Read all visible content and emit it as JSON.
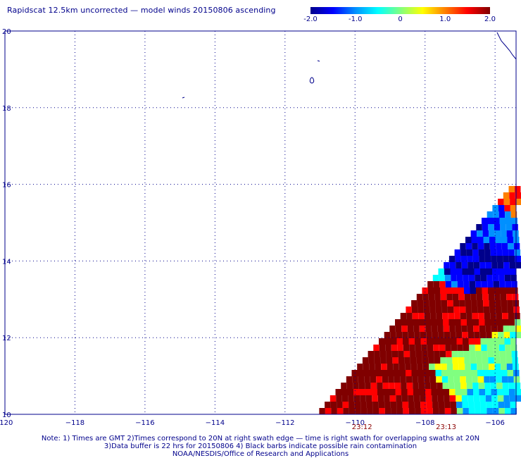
{
  "title": "Rapidscat 12.5km uncorrected — model winds 20150806 ascending",
  "colorbar": {
    "labels": [
      "-2.0",
      "-1.0",
      "0",
      "1.0",
      "2.0"
    ],
    "values": [
      -2.0,
      -1.0,
      0,
      1.0,
      2.0
    ],
    "range": [
      -2.0,
      2.0
    ],
    "colors": [
      "#00008b",
      "#0000ff",
      "#0090ff",
      "#00ffff",
      "#80ff80",
      "#ffff00",
      "#ff8000",
      "#ff0000",
      "#800000"
    ]
  },
  "map": {
    "lon_range": [
      -120,
      -105.4
    ],
    "lat_range": [
      10,
      20
    ],
    "lon_ticks": [
      -120,
      -118,
      -116,
      -114,
      -112,
      -110,
      -108,
      -106
    ],
    "lon_tick_labels": [
      "-120",
      "−118",
      "−116",
      "−114",
      "−112",
      "−110",
      "−108",
      "−106"
    ],
    "lat_ticks": [
      10,
      12,
      14,
      16,
      18,
      20
    ],
    "lat_tick_labels": [
      "10",
      "12",
      "14",
      "16",
      "18",
      "20"
    ],
    "grid": "dotted",
    "swath_times": [
      {
        "label": "23:12",
        "lon": -109.8
      },
      {
        "label": "23:13",
        "lon": -107.4
      }
    ],
    "swath_cells": [
      {
        "lat": 15.8,
        "lon": -105.7,
        "v": 1.2
      },
      {
        "lat": 15.4,
        "lon": -106.3,
        "v": -1.2
      },
      {
        "lat": 15.0,
        "lon": -107.0,
        "v": -1.5
      },
      {
        "lat": 14.6,
        "lon": -107.3,
        "v": -1.6
      },
      {
        "lat": 14.2,
        "lon": -107.4,
        "v": -1.7
      },
      {
        "lat": 13.8,
        "lon": -108.0,
        "v": -0.9
      },
      {
        "lat": 13.2,
        "lon": -108.2,
        "v": 2.0
      },
      {
        "lat": 12.6,
        "lon": -108.4,
        "v": 2.0
      },
      {
        "lat": 12.2,
        "lon": -107.3,
        "v": 2.0
      },
      {
        "lat": 11.6,
        "lon": -109.1,
        "v": 2.0
      },
      {
        "lat": 11.2,
        "lon": -106.5,
        "v": 0.1
      },
      {
        "lat": 10.8,
        "lon": -106.0,
        "v": -0.6
      },
      {
        "lat": 10.5,
        "lon": -109.5,
        "v": 2.0
      },
      {
        "lat": 10.2,
        "lon": -108.4,
        "v": 2.0
      }
    ]
  },
  "notes": [
    "Note: 1) Times are GMT 2)Times correspond to 20N at right swath edge — time is right swath for overlapping swaths at 20N",
    "3)Data buffer is 22 hrs for 20150806 4) Black barbs indicate possible rain contamination",
    "NOAA/NESDIS/Office of Research and Applications"
  ]
}
